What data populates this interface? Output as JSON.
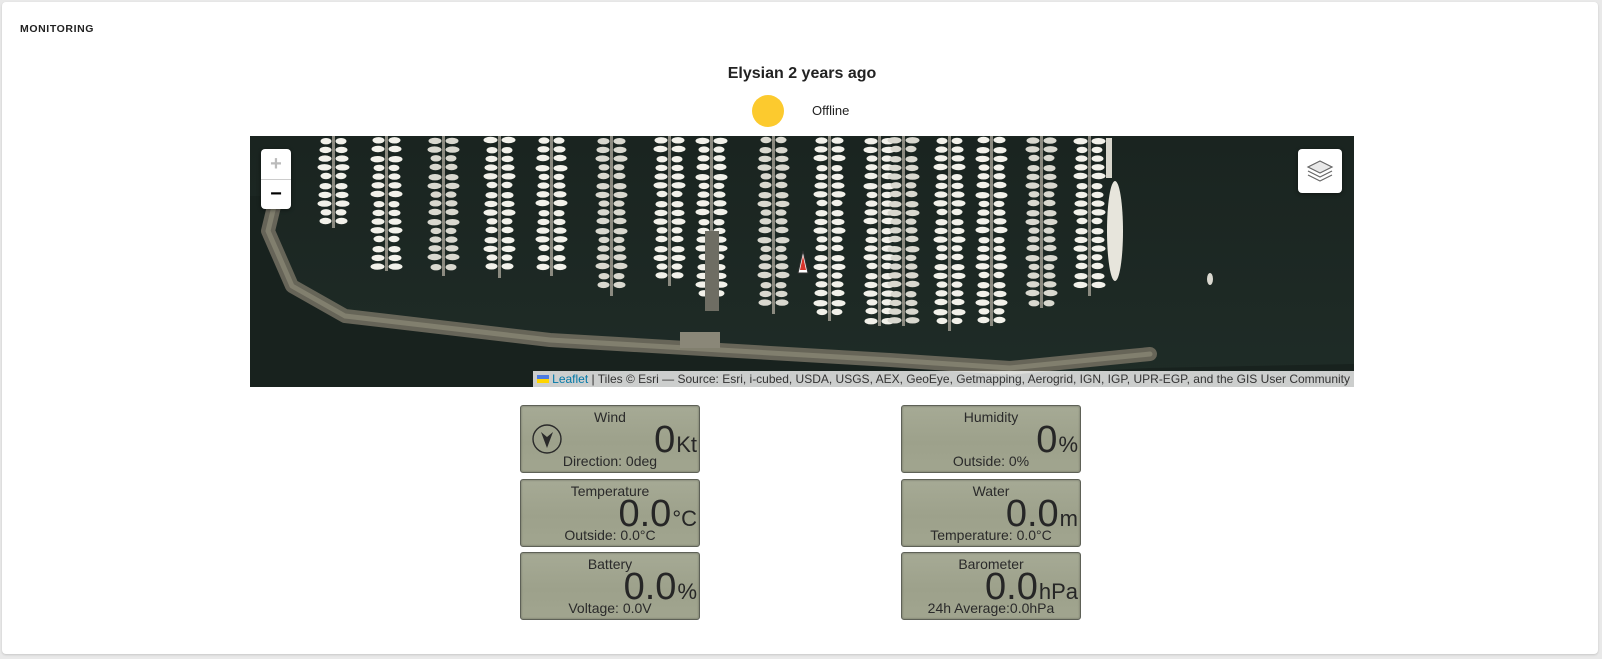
{
  "section": {
    "title": "MONITORING"
  },
  "vessel": {
    "title": "Elysian 2 years ago",
    "status_text": "Offline",
    "status_color": "#fcca2e"
  },
  "map": {
    "zoom_in_label": "+",
    "zoom_out_label": "−",
    "layers_icon": "layers-icon",
    "attribution": {
      "leaflet_text": "Leaflet",
      "separator": "|",
      "tiles_text": "Tiles © Esri — Source: Esri, i-cubed, USDA, USGS, AEX, GeoEye, Getmapping, Aerogrid, IGN, IGP, UPR-EGP, and the GIS User Community"
    }
  },
  "gauges": {
    "wind": {
      "label": "Wind",
      "value": "0",
      "unit": "Kt",
      "sub": "Direction: 0deg",
      "icon": "compass-arrow-icon"
    },
    "humidity": {
      "label": "Humidity",
      "value": "0",
      "unit": "%",
      "sub": "Outside: 0%"
    },
    "temperature": {
      "label": "Temperature",
      "value": "0.0",
      "unit": "°C",
      "sub": "Outside: 0.0°C"
    },
    "water": {
      "label": "Water",
      "value": "0.0",
      "unit": "m",
      "sub": "Temperature: 0.0°C"
    },
    "battery": {
      "label": "Battery",
      "value": "0.0",
      "unit": "%",
      "sub": "Voltage: 0.0V"
    },
    "barometer": {
      "label": "Barometer",
      "value": "0.0",
      "unit": "hPa",
      "sub": "24h Average:0.0hPa"
    }
  }
}
